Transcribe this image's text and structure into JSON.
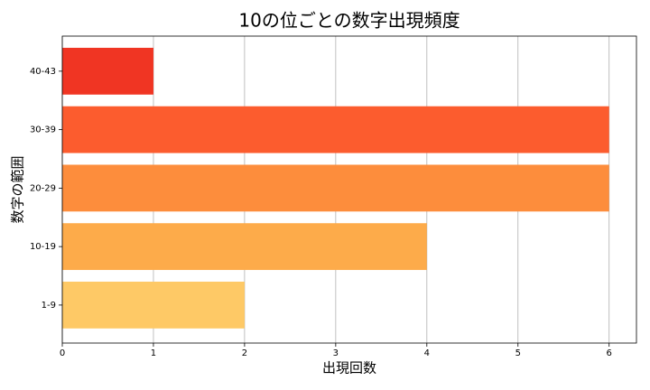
{
  "chart_data": {
    "type": "barh",
    "title": "10の位ごとの数字出現頻度",
    "x_label": "出現回数",
    "y_label": "数字の範囲",
    "categories": [
      "1-9",
      "10-19",
      "20-29",
      "30-39",
      "40-43"
    ],
    "values": [
      2,
      4,
      6,
      6,
      1
    ],
    "colors": [
      "#fec966",
      "#fdab4a",
      "#fd8d3c",
      "#fc5c2e",
      "#f03523"
    ],
    "xlim": [
      0,
      6.3
    ],
    "xticks": [
      0,
      1,
      2,
      3,
      4,
      5,
      6
    ],
    "grid": true
  }
}
